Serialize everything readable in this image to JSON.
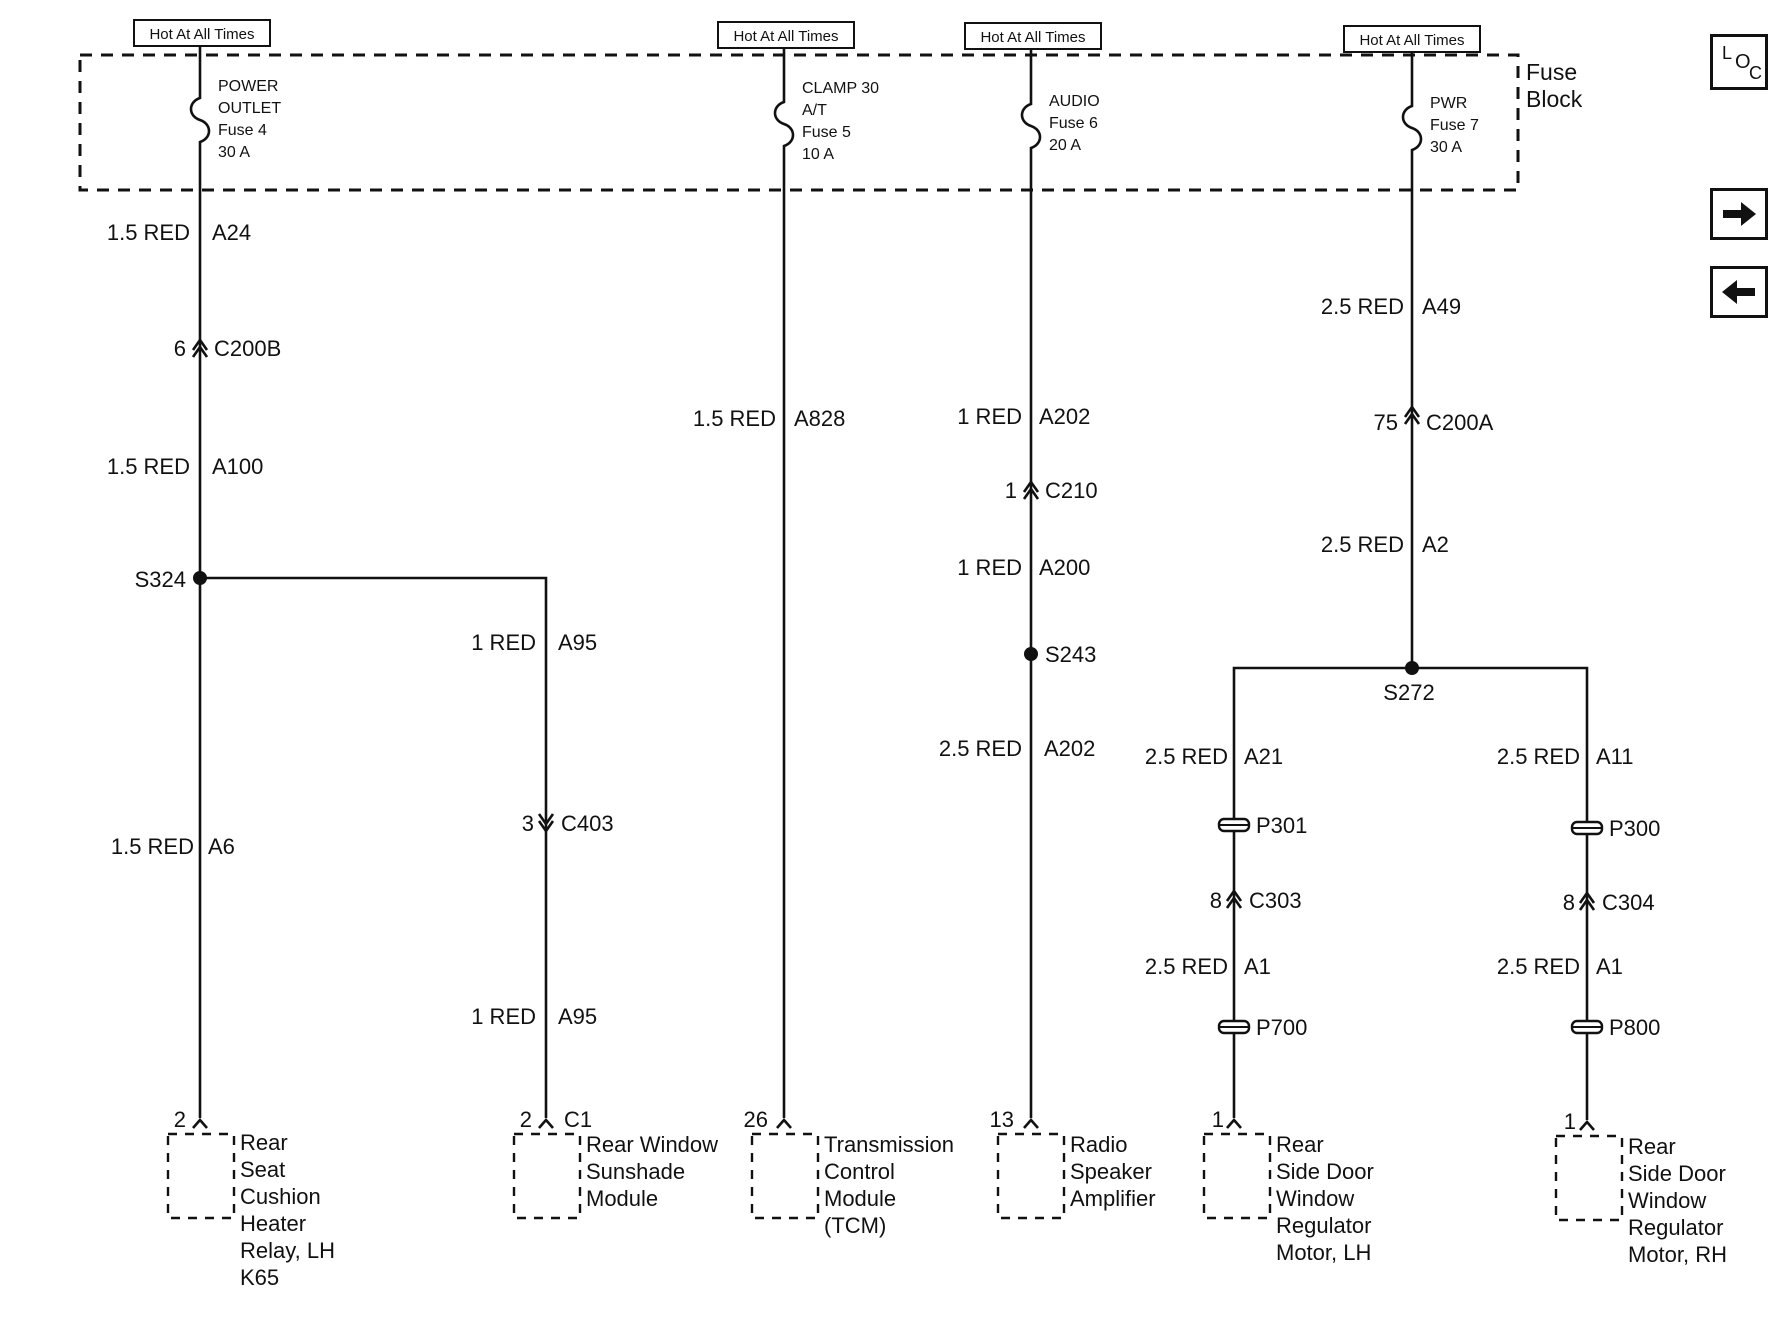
{
  "hot_labels": [
    "Hot At All Times",
    "Hot At All Times",
    "Hot At All Times",
    "Hot At All Times"
  ],
  "fuse_block": {
    "line1": "Fuse",
    "line2": "Block"
  },
  "fuses": [
    {
      "lines": [
        "POWER",
        "OUTLET",
        "Fuse 4",
        "30 A"
      ]
    },
    {
      "lines": [
        "CLAMP 30",
        "A/T",
        "Fuse 5",
        "10 A"
      ]
    },
    {
      "lines": [
        "AUDIO",
        "Fuse 6",
        "20 A"
      ]
    },
    {
      "lines": [
        "PWR",
        "Fuse 7",
        "30 A"
      ]
    }
  ],
  "wires": {
    "w1": {
      "gauge": "1.5 RED",
      "circuit": "A24"
    },
    "w2": {
      "gauge": "1.5 RED",
      "circuit": "A100"
    },
    "w3": {
      "gauge": "1.5 RED",
      "circuit": "A6"
    },
    "w4": {
      "gauge": "1 RED",
      "circuit": "A95"
    },
    "w5": {
      "gauge": "1 RED",
      "circuit": "A95"
    },
    "w6": {
      "gauge": "1.5 RED",
      "circuit": "A828"
    },
    "w7": {
      "gauge": "1 RED",
      "circuit": "A202"
    },
    "w8": {
      "gauge": "1 RED",
      "circuit": "A200"
    },
    "w9": {
      "gauge": "2.5 RED",
      "circuit": "A202"
    },
    "w10": {
      "gauge": "2.5 RED",
      "circuit": "A49"
    },
    "w11": {
      "gauge": "2.5 RED",
      "circuit": "A2"
    },
    "w12": {
      "gauge": "2.5 RED",
      "circuit": "A21"
    },
    "w13": {
      "gauge": "2.5 RED",
      "circuit": "A1"
    },
    "w14": {
      "gauge": "2.5 RED",
      "circuit": "A11"
    },
    "w15": {
      "gauge": "2.5 RED",
      "circuit": "A1"
    }
  },
  "connectors": {
    "c200b": {
      "pin": "6",
      "name": "C200B"
    },
    "c403": {
      "pin": "3",
      "name": "C403"
    },
    "c210": {
      "pin": "1",
      "name": "C210"
    },
    "c200a": {
      "pin": "75",
      "name": "C200A"
    },
    "c303": {
      "pin": "8",
      "name": "C303"
    },
    "c304": {
      "pin": "8",
      "name": "C304"
    }
  },
  "splices": {
    "s324": "S324",
    "s243": "S243",
    "s272": "S272"
  },
  "inline": {
    "p301": "P301",
    "p300": "P300",
    "p700": "P700",
    "p800": "P800"
  },
  "components": [
    {
      "pin": "2",
      "connector": "",
      "lines": [
        "Rear",
        "Seat",
        "Cushion",
        "Heater",
        "Relay, LH",
        "K65"
      ]
    },
    {
      "pin": "2",
      "connector": "C1",
      "lines": [
        "Rear Window",
        "Sunshade",
        "Module"
      ]
    },
    {
      "pin": "26",
      "connector": "",
      "lines": [
        "Transmission",
        "Control",
        "Module",
        "(TCM)"
      ]
    },
    {
      "pin": "13",
      "connector": "",
      "lines": [
        "Radio",
        "Speaker",
        "Amplifier"
      ]
    },
    {
      "pin": "1",
      "connector": "",
      "lines": [
        "Rear",
        "Side Door",
        "Window",
        "Regulator",
        "Motor, LH"
      ]
    },
    {
      "pin": "1",
      "connector": "",
      "lines": [
        "Rear",
        "Side Door",
        "Window",
        "Regulator",
        "Motor, RH"
      ]
    }
  ],
  "nav": {
    "loc_icon": "loc-icon",
    "next_icon": "arrow-right-icon",
    "prev_icon": "arrow-left-icon",
    "loc": [
      "L",
      "O",
      "C"
    ]
  }
}
